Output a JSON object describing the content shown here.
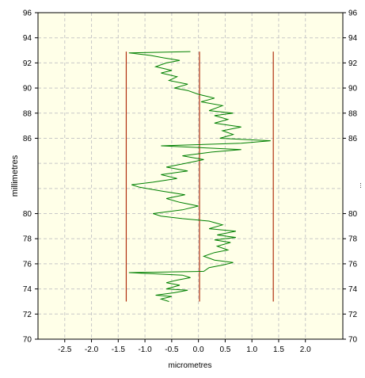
{
  "chart_data": {
    "type": "line",
    "title": "",
    "xlabel": "micrometres",
    "ylabel": "millimetres",
    "xlim": [
      -3.0,
      2.7
    ],
    "ylim": [
      70,
      96
    ],
    "x_ticks": [
      -2.5,
      -2.0,
      -1.5,
      -1.0,
      -0.5,
      0.0,
      0.5,
      1.0,
      1.5,
      2.0
    ],
    "x_tick_labels": [
      "-2.5",
      "-2.0",
      "-1.5",
      "-1.0",
      "-0.5",
      "0.0",
      "0.5",
      "1.0",
      "1.5",
      "2.0"
    ],
    "y_ticks": [
      70,
      72,
      74,
      76,
      78,
      80,
      86,
      88,
      90,
      92,
      94,
      96
    ],
    "y_tick_labels": [
      "70",
      "72",
      "74",
      "76",
      "78",
      "80",
      "86",
      "88",
      "90",
      "92",
      "94",
      "96"
    ],
    "right_y_ticks": [
      70,
      72,
      74,
      76,
      78,
      80,
      86,
      88,
      90,
      92,
      94,
      96
    ],
    "right_y_tick_labels": [
      "70",
      "72",
      "74",
      "76",
      "78",
      "80",
      "86",
      "88",
      "90",
      "92",
      "94",
      "96"
    ],
    "right_axis_marker": "...",
    "grid": true,
    "colors": {
      "plot_background": "#ffffe8",
      "grid": "#c8c8c8",
      "profile": "#008000",
      "reference_lines": "#b03010"
    },
    "reference_lines": [
      {
        "x": -1.35,
        "y_range": [
          73.0,
          92.9
        ]
      },
      {
        "x": 0.02,
        "y_range": [
          73.0,
          92.9
        ]
      },
      {
        "x": 1.4,
        "y_range": [
          73.0,
          92.9
        ]
      }
    ],
    "series": [
      {
        "points": [
          [
            -0.55,
            73.0
          ],
          [
            -0.7,
            73.2
          ],
          [
            -0.5,
            73.4
          ],
          [
            -0.8,
            73.5
          ],
          [
            -0.45,
            73.7
          ],
          [
            -0.2,
            73.9
          ],
          [
            -0.6,
            74.0
          ],
          [
            -0.35,
            74.3
          ],
          [
            -0.6,
            74.5
          ],
          [
            -0.4,
            74.7
          ],
          [
            -0.15,
            74.9
          ],
          [
            -0.3,
            75.1
          ],
          [
            -1.3,
            75.3
          ],
          [
            0.1,
            75.4
          ],
          [
            0.2,
            75.7
          ],
          [
            0.45,
            75.9
          ],
          [
            0.65,
            76.1
          ],
          [
            0.3,
            76.3
          ],
          [
            0.1,
            76.6
          ],
          [
            0.3,
            76.9
          ],
          [
            0.55,
            77.1
          ],
          [
            0.35,
            77.4
          ],
          [
            0.6,
            77.7
          ],
          [
            0.3,
            77.9
          ],
          [
            0.7,
            78.1
          ],
          [
            0.35,
            78.3
          ],
          [
            0.7,
            78.6
          ],
          [
            0.2,
            78.8
          ],
          [
            0.45,
            79.1
          ],
          [
            0.2,
            79.4
          ],
          [
            -0.3,
            79.6
          ],
          [
            -0.7,
            79.8
          ],
          [
            -0.85,
            80.0
          ],
          [
            -0.3,
            80.3
          ],
          [
            0.0,
            80.6
          ],
          [
            -0.35,
            80.9
          ],
          [
            -0.6,
            81.2
          ],
          [
            -0.25,
            81.5
          ],
          [
            -0.7,
            81.8
          ],
          [
            -1.1,
            82.1
          ],
          [
            -1.25,
            82.3
          ],
          [
            -0.85,
            82.5
          ],
          [
            -0.4,
            82.8
          ],
          [
            -0.7,
            83.1
          ],
          [
            -0.2,
            83.4
          ],
          [
            -0.6,
            83.7
          ],
          [
            -0.25,
            84.0
          ],
          [
            0.1,
            84.3
          ],
          [
            -0.3,
            84.6
          ],
          [
            0.25,
            84.9
          ],
          [
            0.8,
            85.1
          ],
          [
            -0.7,
            85.4
          ],
          [
            0.8,
            85.6
          ],
          [
            1.35,
            85.8
          ],
          [
            0.4,
            86.0
          ],
          [
            0.65,
            86.3
          ],
          [
            0.45,
            86.6
          ],
          [
            0.8,
            86.9
          ],
          [
            0.3,
            87.2
          ],
          [
            0.55,
            87.5
          ],
          [
            0.3,
            87.8
          ],
          [
            0.65,
            88.0
          ],
          [
            0.2,
            88.2
          ],
          [
            0.45,
            88.6
          ],
          [
            0.05,
            88.9
          ],
          [
            0.3,
            89.2
          ],
          [
            0.0,
            89.5
          ],
          [
            -0.2,
            89.8
          ],
          [
            -0.45,
            90.0
          ],
          [
            -0.2,
            90.3
          ],
          [
            -0.55,
            90.6
          ],
          [
            -0.4,
            90.9
          ],
          [
            -0.7,
            91.2
          ],
          [
            -0.5,
            91.4
          ],
          [
            -0.8,
            91.7
          ],
          [
            -0.6,
            92.0
          ],
          [
            -0.35,
            92.2
          ],
          [
            -0.65,
            92.4
          ],
          [
            -0.9,
            92.6
          ],
          [
            -1.3,
            92.8
          ],
          [
            -0.15,
            92.9
          ]
        ]
      }
    ]
  }
}
